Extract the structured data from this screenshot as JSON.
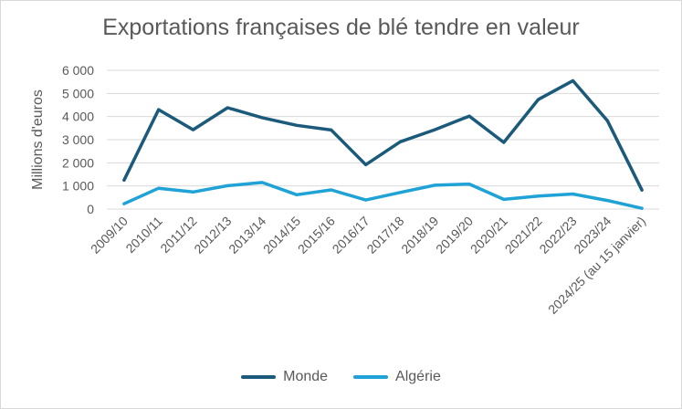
{
  "chart_data": {
    "type": "line",
    "title": "Exportations françaises de blé tendre en valeur",
    "xlabel": "",
    "ylabel": "Millions d'euros",
    "ylim": [
      0,
      6000
    ],
    "yticks": [
      0,
      1000,
      2000,
      3000,
      4000,
      5000,
      6000
    ],
    "ytick_labels": [
      "0",
      "1 000",
      "2 000",
      "3 000",
      "4 000",
      "5 000",
      "6 000"
    ],
    "grid": true,
    "legend_position": "bottom",
    "categories": [
      "2009/10",
      "2010/11",
      "2011/12",
      "2012/13",
      "2013/14",
      "2014/15",
      "2015/16",
      "2016/17",
      "2017/18",
      "2018/19",
      "2019/20",
      "2020/21",
      "2021/22",
      "2022/23",
      "2023/24",
      "2024/25 (au 15 janvier)"
    ],
    "series": [
      {
        "name": "Monde",
        "color": "#1b5a7a",
        "values": [
          1250,
          4300,
          3430,
          4380,
          3950,
          3620,
          3420,
          1920,
          2910,
          3430,
          4020,
          2880,
          4740,
          5550,
          3820,
          820
        ]
      },
      {
        "name": "Algérie",
        "color": "#1fa2d6",
        "values": [
          230,
          900,
          740,
          1010,
          1150,
          620,
          830,
          390,
          720,
          1030,
          1080,
          420,
          560,
          650,
          370,
          30
        ]
      }
    ]
  }
}
